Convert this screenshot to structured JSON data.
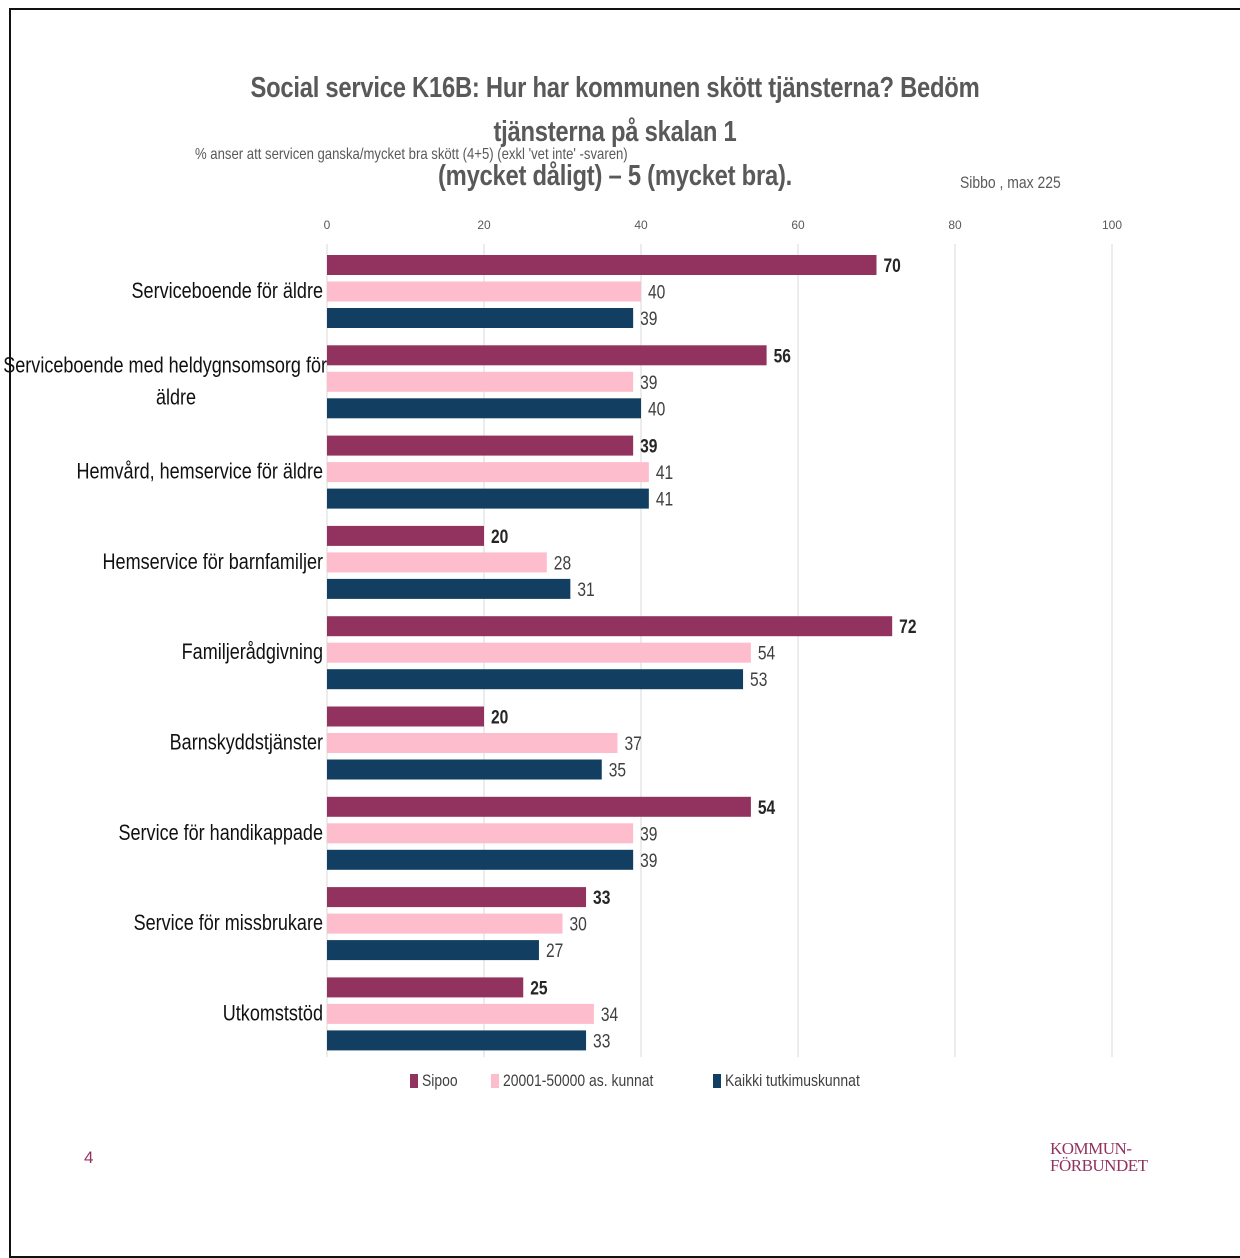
{
  "page": {
    "title_line1": "Social service K16B: Hur har kommunen skött tjänsterna? Bedöm tjänsterna på skalan 1",
    "title_line2": "(mycket dåligt)   – 5 (mycket bra).",
    "subtitle": "% anser att servicen ganska/mycket bra skött (4+5) (exkl 'vet inte'        -svaren)",
    "note": "Sibbo , max 225",
    "page_number": "4",
    "logo_line1": "KOMMUN-",
    "logo_line2": "FÖRBUNDET"
  },
  "colors": {
    "sipoo": "#92335f",
    "mid": "#fdbdcd",
    "all": "#123f61",
    "grid": "#d9d9d9"
  },
  "chart_data": {
    "type": "bar",
    "orientation": "horizontal",
    "xlim": [
      0,
      100
    ],
    "xticks": [
      0,
      20,
      40,
      60,
      80,
      100
    ],
    "grid": true,
    "legend_position": "bottom",
    "categories": [
      [
        "Serviceboende för äldre"
      ],
      [
        "Serviceboende med heldygnsomsorg för",
        "äldre"
      ],
      [
        "Hemvård, hemservice för äldre"
      ],
      [
        "Hemservice för barnfamiljer"
      ],
      [
        "Familjerådgivning"
      ],
      [
        "Barnskyddstjänster"
      ],
      [
        "Service för handikappade"
      ],
      [
        "Service för missbrukare"
      ],
      [
        "Utkomststöd"
      ]
    ],
    "series": [
      {
        "name": "Sipoo",
        "values": [
          70,
          56,
          39,
          20,
          72,
          20,
          54,
          33,
          25
        ]
      },
      {
        "name": "20001-50000 as. kunnat",
        "values": [
          40,
          39,
          41,
          28,
          54,
          37,
          39,
          30,
          34
        ]
      },
      {
        "name": "Kaikki tutkimuskunnat",
        "values": [
          39,
          40,
          41,
          31,
          53,
          35,
          39,
          27,
          33
        ]
      }
    ]
  }
}
